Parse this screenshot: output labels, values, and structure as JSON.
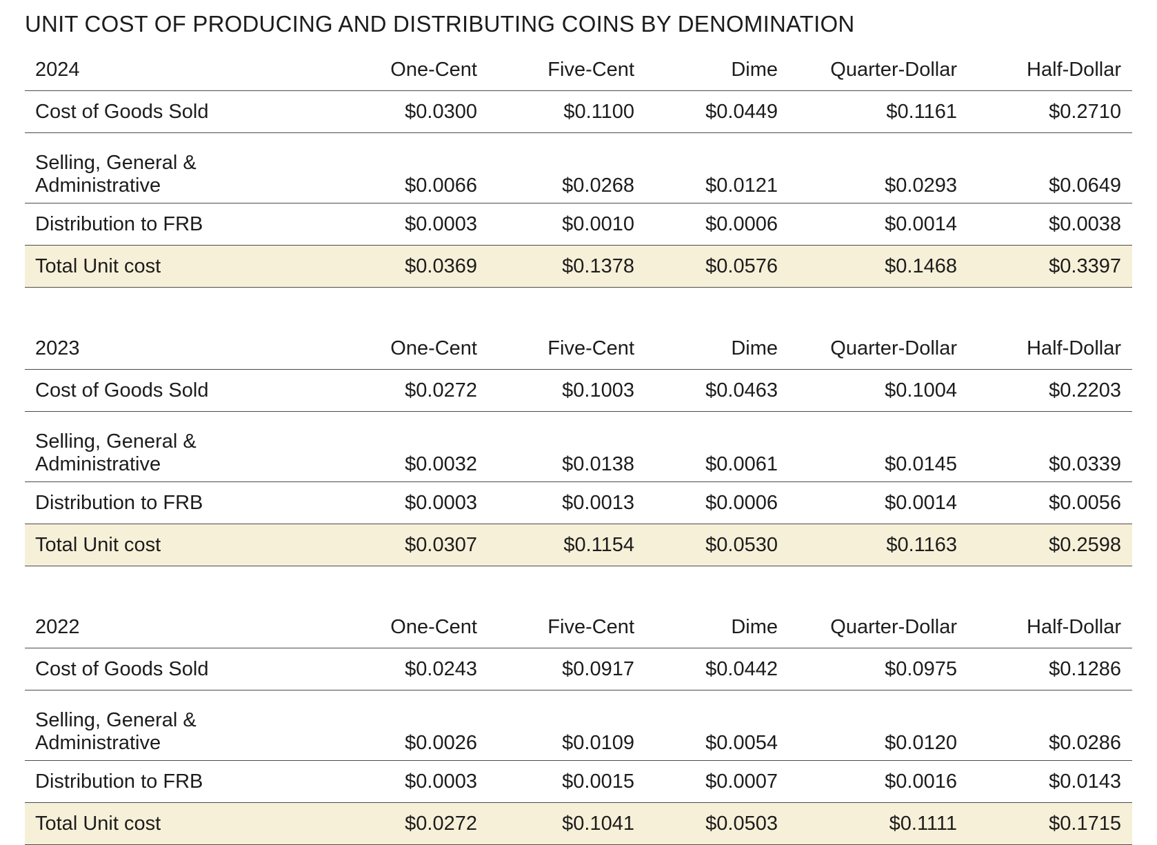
{
  "title": "UNIT COST OF PRODUCING AND DISTRIBUTING COINS BY DENOMINATION",
  "columns": [
    "One-Cent",
    "Five-Cent",
    "Dime",
    "Quarter-Dollar",
    "Half-Dollar"
  ],
  "tables": [
    {
      "year": "2024",
      "rows": [
        {
          "label": "Cost of Goods Sold",
          "values": [
            "$0.0300",
            "$0.1100",
            "$0.0449",
            "$0.1161",
            "$0.2710"
          ]
        },
        {
          "label_line1": "Selling, General &",
          "label_line2": "Administrative",
          "values": [
            "$0.0066",
            "$0.0268",
            "$0.0121",
            "$0.0293",
            "$0.0649"
          ]
        },
        {
          "label": "Distribution to FRB",
          "values": [
            "$0.0003",
            "$0.0010",
            "$0.0006",
            "$0.0014",
            "$0.0038"
          ]
        },
        {
          "label": "Total Unit cost",
          "values": [
            "$0.0369",
            "$0.1378",
            "$0.0576",
            "$0.1468",
            "$0.3397"
          ]
        }
      ]
    },
    {
      "year": "2023",
      "rows": [
        {
          "label": "Cost of Goods Sold",
          "values": [
            "$0.0272",
            "$0.1003",
            "$0.0463",
            "$0.1004",
            "$0.2203"
          ]
        },
        {
          "label_line1": "Selling, General &",
          "label_line2": "Administrative",
          "values": [
            "$0.0032",
            "$0.0138",
            "$0.0061",
            "$0.0145",
            "$0.0339"
          ]
        },
        {
          "label": "Distribution to FRB",
          "values": [
            "$0.0003",
            "$0.0013",
            "$0.0006",
            "$0.0014",
            "$0.0056"
          ]
        },
        {
          "label": "Total Unit cost",
          "values": [
            "$0.0307",
            "$0.1154",
            "$0.0530",
            "$0.1163",
            "$0.2598"
          ]
        }
      ]
    },
    {
      "year": "2022",
      "rows": [
        {
          "label": "Cost of Goods Sold",
          "values": [
            "$0.0243",
            "$0.0917",
            "$0.0442",
            "$0.0975",
            "$0.1286"
          ]
        },
        {
          "label_line1": "Selling, General &",
          "label_line2": "Administrative",
          "values": [
            "$0.0026",
            "$0.0109",
            "$0.0054",
            "$0.0120",
            "$0.0286"
          ]
        },
        {
          "label": "Distribution to FRB",
          "values": [
            "$0.0003",
            "$0.0015",
            "$0.0007",
            "$0.0016",
            "$0.0143"
          ]
        },
        {
          "label": "Total Unit cost",
          "values": [
            "$0.0272",
            "$0.1041",
            "$0.0503",
            "$0.1111",
            "$0.1715"
          ]
        }
      ]
    }
  ],
  "colors": {
    "total_row_background": "#f7f0d8",
    "rule": "#4a4a4a",
    "text": "#1c1c1c"
  }
}
